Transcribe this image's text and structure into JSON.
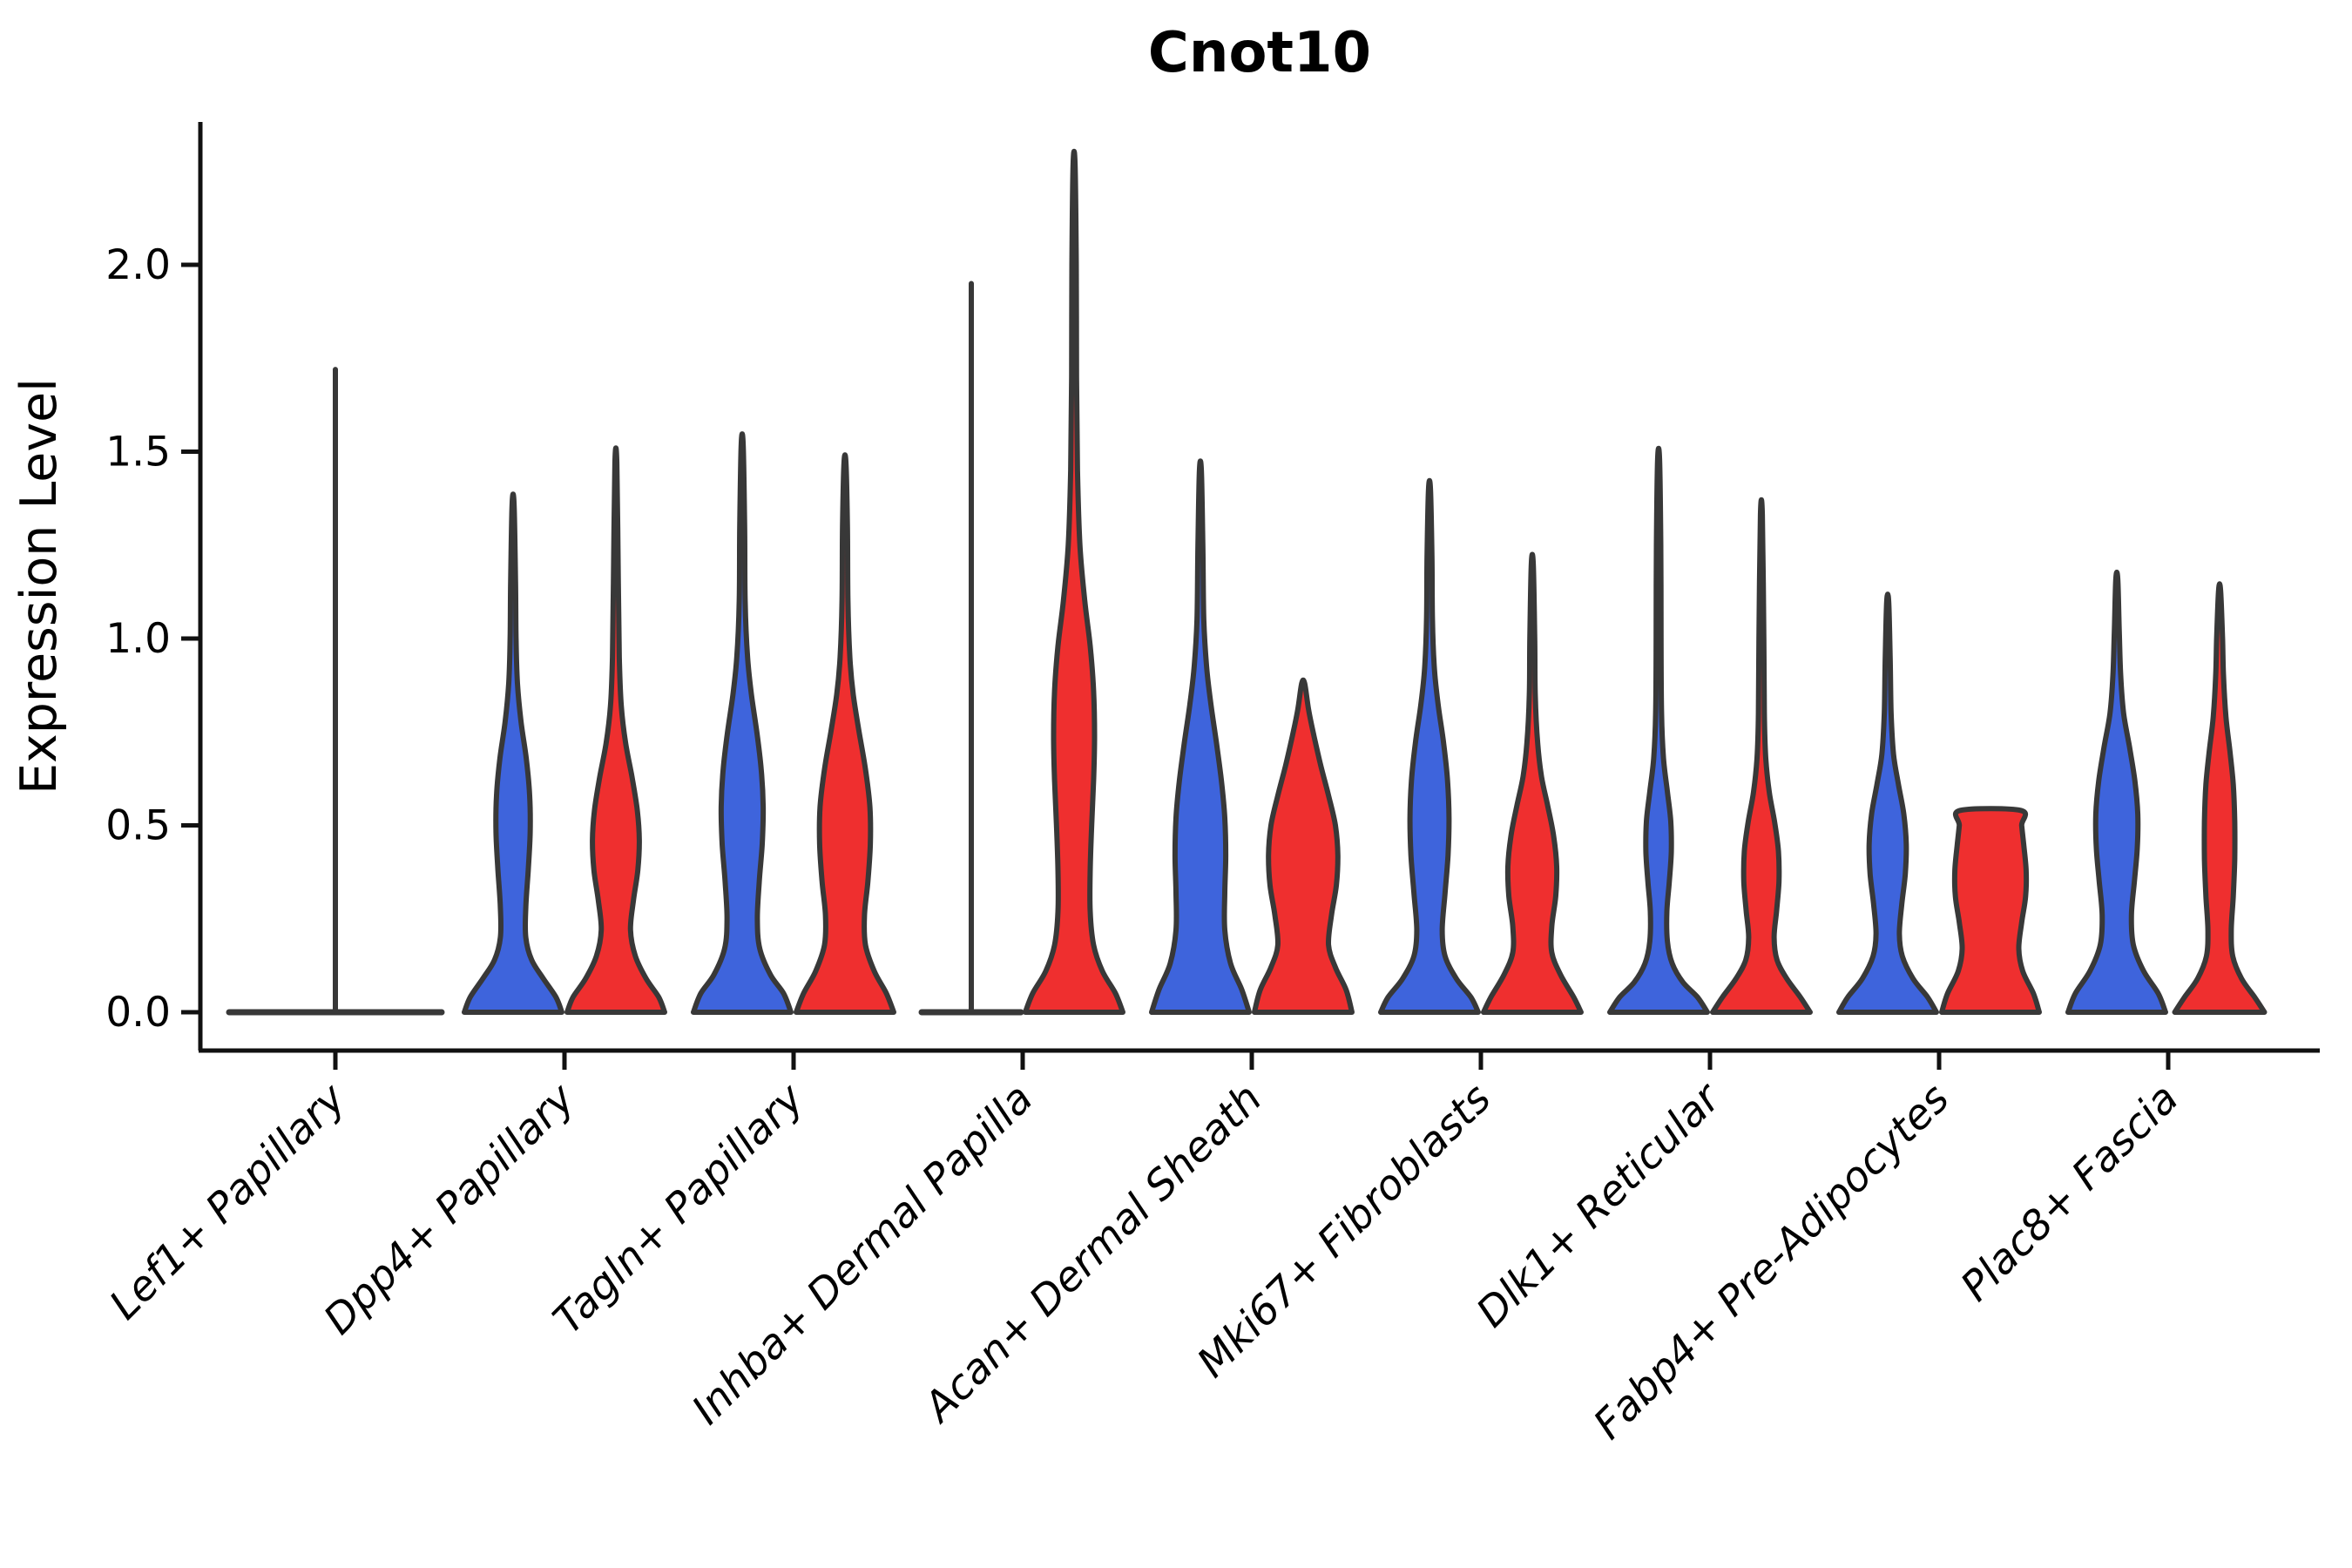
{
  "chart_data": {
    "type": "violin",
    "title": "Cnot10",
    "ylabel": "Expression Level",
    "xlabel": "",
    "ylim": [
      -0.1,
      2.38
    ],
    "yticks": [
      0.0,
      0.5,
      1.0,
      1.5,
      2.0
    ],
    "ytick_labels": [
      "0.0",
      "0.5",
      "1.0",
      "1.5",
      "2.0"
    ],
    "grid": false,
    "legend_position": "none",
    "colors": {
      "group1": "#3E64DC",
      "group2": "#EF2F2F",
      "violin_outline": "#383838",
      "axis": "#111111"
    },
    "categories": [
      "Lef1+ Papillary",
      "Dpp4+ Papillary",
      "Tagln+ Papillary",
      "Inhba+ Dermal Papilla",
      "Acan+ Dermal Sheath",
      "Mki67+ Fibroblasts",
      "Dlk1+ Reticular",
      "Fabp4+ Pre-Adipocytes",
      "Plac8+ Fascia"
    ],
    "groups": [
      {
        "name": "group1",
        "side": "left",
        "color_key": "group1"
      },
      {
        "name": "group2",
        "side": "right",
        "color_key": "group2"
      }
    ],
    "violins": [
      {
        "category_index": 0,
        "group": "combined",
        "side": "center",
        "collapsed": true,
        "line_halfwidth": 122,
        "max": 1.72
      },
      {
        "category_index": 1,
        "group": "group1",
        "side": "left",
        "max": 1.36,
        "profile": [
          [
            0,
            1
          ],
          [
            0.04,
            0.88
          ],
          [
            0.09,
            0.62
          ],
          [
            0.14,
            0.38
          ],
          [
            0.2,
            0.26
          ],
          [
            0.28,
            0.26
          ],
          [
            0.38,
            0.31
          ],
          [
            0.48,
            0.35
          ],
          [
            0.58,
            0.34
          ],
          [
            0.68,
            0.27
          ],
          [
            0.78,
            0.16
          ],
          [
            0.88,
            0.09
          ],
          [
            1.0,
            0.06
          ],
          [
            1.15,
            0.05
          ],
          [
            1.36,
            0.02
          ]
        ]
      },
      {
        "category_index": 1,
        "group": "group2",
        "side": "right",
        "max": 1.47,
        "profile": [
          [
            0,
            1
          ],
          [
            0.04,
            0.88
          ],
          [
            0.09,
            0.62
          ],
          [
            0.15,
            0.4
          ],
          [
            0.22,
            0.3
          ],
          [
            0.3,
            0.36
          ],
          [
            0.38,
            0.45
          ],
          [
            0.46,
            0.48
          ],
          [
            0.54,
            0.44
          ],
          [
            0.63,
            0.33
          ],
          [
            0.72,
            0.2
          ],
          [
            0.82,
            0.11
          ],
          [
            0.95,
            0.07
          ],
          [
            1.15,
            0.05
          ],
          [
            1.47,
            0.02
          ]
        ]
      },
      {
        "category_index": 2,
        "group": "group1",
        "side": "left",
        "max": 1.52,
        "profile": [
          [
            0,
            1
          ],
          [
            0.05,
            0.85
          ],
          [
            0.1,
            0.58
          ],
          [
            0.17,
            0.36
          ],
          [
            0.25,
            0.31
          ],
          [
            0.35,
            0.35
          ],
          [
            0.45,
            0.41
          ],
          [
            0.55,
            0.43
          ],
          [
            0.65,
            0.39
          ],
          [
            0.75,
            0.3
          ],
          [
            0.85,
            0.19
          ],
          [
            0.95,
            0.11
          ],
          [
            1.1,
            0.06
          ],
          [
            1.3,
            0.05
          ],
          [
            1.52,
            0.02
          ]
        ]
      },
      {
        "category_index": 2,
        "group": "group2",
        "side": "right",
        "max": 1.47,
        "profile": [
          [
            0,
            1
          ],
          [
            0.05,
            0.85
          ],
          [
            0.11,
            0.6
          ],
          [
            0.18,
            0.42
          ],
          [
            0.26,
            0.4
          ],
          [
            0.35,
            0.47
          ],
          [
            0.45,
            0.52
          ],
          [
            0.55,
            0.51
          ],
          [
            0.65,
            0.42
          ],
          [
            0.75,
            0.29
          ],
          [
            0.85,
            0.17
          ],
          [
            0.95,
            0.1
          ],
          [
            1.1,
            0.06
          ],
          [
            1.3,
            0.05
          ],
          [
            1.47,
            0.02
          ]
        ]
      },
      {
        "category_index": 3,
        "group": "group1",
        "side": "left",
        "collapsed": true,
        "line_halfwidth": 57,
        "max": 1.95
      },
      {
        "category_index": 3,
        "group": "group2",
        "side": "right",
        "max": 2.27,
        "profile": [
          [
            0,
            1
          ],
          [
            0.05,
            0.85
          ],
          [
            0.11,
            0.58
          ],
          [
            0.18,
            0.4
          ],
          [
            0.27,
            0.33
          ],
          [
            0.38,
            0.33
          ],
          [
            0.5,
            0.36
          ],
          [
            0.62,
            0.4
          ],
          [
            0.74,
            0.42
          ],
          [
            0.86,
            0.4
          ],
          [
            0.98,
            0.33
          ],
          [
            1.1,
            0.22
          ],
          [
            1.25,
            0.12
          ],
          [
            1.45,
            0.07
          ],
          [
            1.7,
            0.05
          ],
          [
            2.0,
            0.045
          ],
          [
            2.27,
            0.02
          ]
        ]
      },
      {
        "category_index": 4,
        "group": "group1",
        "side": "left",
        "max": 1.45,
        "profile": [
          [
            0,
            1
          ],
          [
            0.06,
            0.85
          ],
          [
            0.13,
            0.62
          ],
          [
            0.22,
            0.5
          ],
          [
            0.32,
            0.5
          ],
          [
            0.42,
            0.52
          ],
          [
            0.52,
            0.5
          ],
          [
            0.62,
            0.43
          ],
          [
            0.72,
            0.33
          ],
          [
            0.82,
            0.22
          ],
          [
            0.92,
            0.13
          ],
          [
            1.05,
            0.07
          ],
          [
            1.25,
            0.05
          ],
          [
            1.45,
            0.02
          ]
        ]
      },
      {
        "category_index": 4,
        "group": "group2",
        "side": "right",
        "max": 0.88,
        "profile": [
          [
            0,
            1
          ],
          [
            0.06,
            0.88
          ],
          [
            0.12,
            0.66
          ],
          [
            0.18,
            0.52
          ],
          [
            0.26,
            0.58
          ],
          [
            0.34,
            0.68
          ],
          [
            0.42,
            0.71
          ],
          [
            0.5,
            0.66
          ],
          [
            0.58,
            0.52
          ],
          [
            0.66,
            0.36
          ],
          [
            0.74,
            0.22
          ],
          [
            0.81,
            0.11
          ],
          [
            0.88,
            0.03
          ]
        ]
      },
      {
        "category_index": 5,
        "group": "group1",
        "side": "left",
        "max": 1.4,
        "profile": [
          [
            0,
            1
          ],
          [
            0.04,
            0.85
          ],
          [
            0.09,
            0.55
          ],
          [
            0.15,
            0.32
          ],
          [
            0.22,
            0.26
          ],
          [
            0.32,
            0.32
          ],
          [
            0.42,
            0.38
          ],
          [
            0.52,
            0.4
          ],
          [
            0.62,
            0.37
          ],
          [
            0.72,
            0.29
          ],
          [
            0.82,
            0.18
          ],
          [
            0.92,
            0.1
          ],
          [
            1.05,
            0.06
          ],
          [
            1.22,
            0.05
          ],
          [
            1.4,
            0.02
          ]
        ]
      },
      {
        "category_index": 5,
        "group": "group2",
        "side": "right",
        "max": 1.2,
        "profile": [
          [
            0,
            1
          ],
          [
            0.04,
            0.85
          ],
          [
            0.1,
            0.58
          ],
          [
            0.16,
            0.4
          ],
          [
            0.23,
            0.4
          ],
          [
            0.31,
            0.48
          ],
          [
            0.39,
            0.5
          ],
          [
            0.47,
            0.44
          ],
          [
            0.55,
            0.32
          ],
          [
            0.63,
            0.19
          ],
          [
            0.72,
            0.11
          ],
          [
            0.85,
            0.06
          ],
          [
            1.0,
            0.05
          ],
          [
            1.2,
            0.02
          ]
        ]
      },
      {
        "category_index": 6,
        "group": "group1",
        "side": "left",
        "max": 1.48,
        "profile": [
          [
            0,
            1
          ],
          [
            0.04,
            0.8
          ],
          [
            0.08,
            0.5
          ],
          [
            0.13,
            0.28
          ],
          [
            0.19,
            0.18
          ],
          [
            0.27,
            0.17
          ],
          [
            0.35,
            0.22
          ],
          [
            0.43,
            0.26
          ],
          [
            0.51,
            0.25
          ],
          [
            0.59,
            0.18
          ],
          [
            0.68,
            0.1
          ],
          [
            0.8,
            0.06
          ],
          [
            1.0,
            0.05
          ],
          [
            1.25,
            0.045
          ],
          [
            1.48,
            0.02
          ]
        ]
      },
      {
        "category_index": 6,
        "group": "group2",
        "side": "right",
        "max": 1.33,
        "profile": [
          [
            0,
            1
          ],
          [
            0.04,
            0.8
          ],
          [
            0.09,
            0.52
          ],
          [
            0.14,
            0.32
          ],
          [
            0.2,
            0.26
          ],
          [
            0.27,
            0.31
          ],
          [
            0.35,
            0.36
          ],
          [
            0.43,
            0.35
          ],
          [
            0.51,
            0.27
          ],
          [
            0.59,
            0.16
          ],
          [
            0.68,
            0.09
          ],
          [
            0.8,
            0.06
          ],
          [
            1.0,
            0.05
          ],
          [
            1.33,
            0.02
          ]
        ]
      },
      {
        "category_index": 7,
        "group": "group1",
        "side": "left",
        "max": 1.1,
        "profile": [
          [
            0,
            1
          ],
          [
            0.04,
            0.82
          ],
          [
            0.09,
            0.52
          ],
          [
            0.15,
            0.3
          ],
          [
            0.21,
            0.24
          ],
          [
            0.29,
            0.29
          ],
          [
            0.37,
            0.36
          ],
          [
            0.45,
            0.38
          ],
          [
            0.53,
            0.33
          ],
          [
            0.61,
            0.22
          ],
          [
            0.69,
            0.12
          ],
          [
            0.8,
            0.07
          ],
          [
            0.95,
            0.05
          ],
          [
            1.1,
            0.02
          ]
        ]
      },
      {
        "category_index": 7,
        "group": "group2",
        "side": "right",
        "max": 0.54,
        "flat_top": true,
        "profile": [
          [
            0,
            1
          ],
          [
            0.05,
            0.88
          ],
          [
            0.11,
            0.66
          ],
          [
            0.17,
            0.58
          ],
          [
            0.24,
            0.64
          ],
          [
            0.31,
            0.72
          ],
          [
            0.38,
            0.73
          ],
          [
            0.45,
            0.68
          ],
          [
            0.5,
            0.64
          ],
          [
            0.54,
            0.62
          ]
        ]
      },
      {
        "category_index": 8,
        "group": "group1",
        "side": "left",
        "max": 1.16,
        "profile": [
          [
            0,
            1
          ],
          [
            0.05,
            0.85
          ],
          [
            0.11,
            0.55
          ],
          [
            0.18,
            0.34
          ],
          [
            0.26,
            0.3
          ],
          [
            0.35,
            0.36
          ],
          [
            0.44,
            0.42
          ],
          [
            0.53,
            0.43
          ],
          [
            0.62,
            0.37
          ],
          [
            0.71,
            0.26
          ],
          [
            0.8,
            0.14
          ],
          [
            0.9,
            0.08
          ],
          [
            1.02,
            0.05
          ],
          [
            1.16,
            0.02
          ]
        ]
      },
      {
        "category_index": 8,
        "group": "group2",
        "side": "right",
        "max": 1.13,
        "profile": [
          [
            0,
            0.92
          ],
          [
            0.04,
            0.72
          ],
          [
            0.09,
            0.45
          ],
          [
            0.15,
            0.27
          ],
          [
            0.22,
            0.24
          ],
          [
            0.31,
            0.28
          ],
          [
            0.41,
            0.31
          ],
          [
            0.51,
            0.31
          ],
          [
            0.61,
            0.28
          ],
          [
            0.7,
            0.21
          ],
          [
            0.79,
            0.13
          ],
          [
            0.9,
            0.08
          ],
          [
            1.0,
            0.06
          ],
          [
            1.13,
            0.02
          ]
        ]
      }
    ]
  }
}
